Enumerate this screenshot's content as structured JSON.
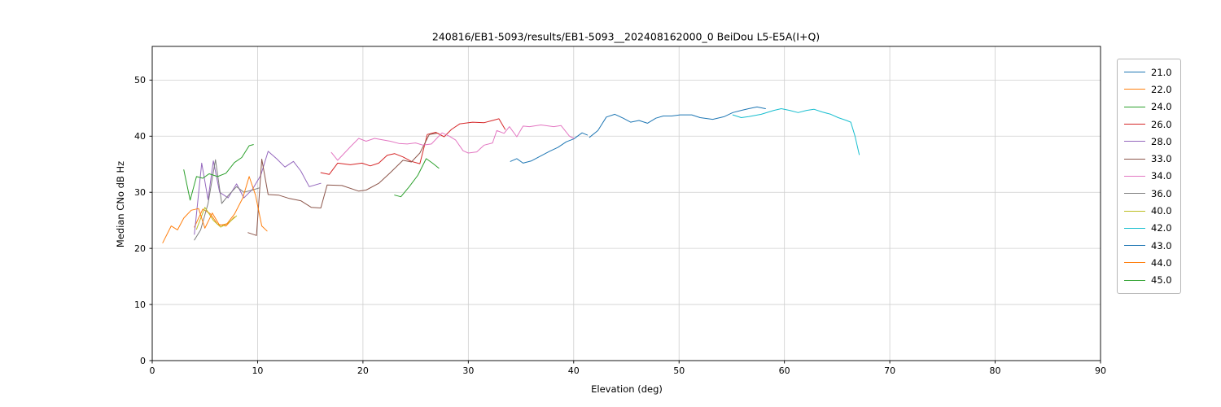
{
  "chart_data": {
    "type": "line",
    "title": "240816/EB1-5093/results/EB1-5093__202408162000_0 BeiDou L5-E5A(I+Q)",
    "xlabel": "Elevation (deg)",
    "ylabel": "Median CNo dB Hz",
    "xlim": [
      0,
      90
    ],
    "ylim": [
      0,
      56
    ],
    "xticks": [
      0,
      10,
      20,
      30,
      40,
      50,
      60,
      70,
      80,
      90
    ],
    "yticks": [
      0,
      10,
      20,
      30,
      40,
      50
    ],
    "grid": true,
    "grid_color": "#cfcfcf",
    "legend_position": "outside-right",
    "series": [
      {
        "name": "21.0",
        "color": "#1f77b4",
        "x": [
          34.0,
          34.6,
          35.2,
          36.0,
          36.9,
          37.7,
          38.5,
          39.3,
          40.0,
          40.8,
          41.3
        ],
        "y": [
          35.5,
          36.0,
          35.2,
          35.6,
          36.5,
          37.3,
          38.0,
          39.0,
          39.5,
          40.6,
          40.2
        ]
      },
      {
        "name": "22.0",
        "color": "#ff7f0e",
        "x": [
          4.0,
          4.8,
          5.5,
          6.2,
          7.0,
          7.8
        ],
        "y": [
          23.8,
          27.0,
          26.2,
          24.3,
          24.0,
          25.6
        ]
      },
      {
        "name": "24.0",
        "color": "#2ca02c",
        "x": [
          23.0,
          23.6,
          24.4,
          25.2,
          26.0,
          26.6,
          27.2
        ],
        "y": [
          29.5,
          29.2,
          31.0,
          33.0,
          36.0,
          35.2,
          34.3
        ]
      },
      {
        "name": "26.0",
        "color": "#d62728",
        "x": [
          16.0,
          16.8,
          17.6,
          18.8,
          19.9,
          20.7,
          21.5,
          22.3,
          23.0,
          23.8,
          24.6,
          25.4,
          26.1,
          26.9,
          27.7,
          28.4,
          29.2,
          30.4,
          31.5,
          32.3,
          32.9,
          33.5
        ],
        "y": [
          33.5,
          33.2,
          35.2,
          34.9,
          35.2,
          34.7,
          35.2,
          36.6,
          36.9,
          36.3,
          35.5,
          35.1,
          40.3,
          40.7,
          39.9,
          41.2,
          42.2,
          42.5,
          42.4,
          42.8,
          43.1,
          41.2
        ]
      },
      {
        "name": "28.0",
        "color": "#9467bd",
        "x": [
          4.0,
          4.7,
          5.3,
          5.8,
          6.4,
          7.2,
          8.0,
          8.7,
          9.5,
          10.3,
          11.0,
          11.8,
          12.6,
          13.4,
          14.1,
          14.9,
          16.0
        ],
        "y": [
          22.5,
          35.2,
          28.7,
          35.6,
          30.0,
          29.0,
          31.5,
          29.0,
          30.5,
          33.0,
          37.3,
          36.0,
          34.5,
          35.5,
          33.8,
          31.0,
          31.6
        ]
      },
      {
        "name": "33.0",
        "color": "#8c564b",
        "x": [
          9.1,
          9.9,
          10.4,
          11.0,
          12.0,
          13.0,
          14.1,
          15.1,
          16.0,
          16.6,
          18.0,
          19.6,
          20.3,
          21.5,
          22.6,
          23.8,
          24.6,
          25.4,
          26.3,
          27.0
        ],
        "y": [
          22.8,
          22.3,
          35.9,
          29.6,
          29.5,
          28.9,
          28.5,
          27.3,
          27.2,
          31.3,
          31.2,
          30.2,
          30.4,
          31.6,
          33.5,
          35.7,
          35.4,
          37.0,
          40.3,
          40.5
        ]
      },
      {
        "name": "34.0",
        "color": "#e377c2",
        "x": [
          17.0,
          17.6,
          18.8,
          19.6,
          20.3,
          21.1,
          22.0,
          22.6,
          23.4,
          24.2,
          25.0,
          25.7,
          26.5,
          27.5,
          28.2,
          28.8,
          29.5,
          30.0,
          30.8,
          31.5,
          32.3,
          32.7,
          33.4,
          33.9,
          34.6,
          35.2,
          35.8,
          36.9,
          38.1,
          38.8,
          39.6,
          40.0
        ],
        "y": [
          37.1,
          35.7,
          38.1,
          39.6,
          39.1,
          39.6,
          39.3,
          39.1,
          38.7,
          38.6,
          38.8,
          38.4,
          38.6,
          40.6,
          40.0,
          39.3,
          37.4,
          37.0,
          37.2,
          38.4,
          38.8,
          41.0,
          40.5,
          41.7,
          39.9,
          41.8,
          41.7,
          42.0,
          41.7,
          41.9,
          40.0,
          39.6
        ]
      },
      {
        "name": "36.0",
        "color": "#7f7f7f",
        "x": [
          4.0,
          4.6,
          5.3,
          6.0,
          6.6,
          7.2,
          8.0,
          8.7,
          9.5,
          10.2
        ],
        "y": [
          21.5,
          23.3,
          28.0,
          35.8,
          28.0,
          29.4,
          31.0,
          30.0,
          30.4,
          30.8
        ]
      },
      {
        "name": "40.0",
        "color": "#bcbd22",
        "x": [
          4.2,
          5.0,
          5.8,
          6.5,
          7.2,
          8.0
        ],
        "y": [
          23.4,
          27.3,
          25.0,
          23.8,
          24.5,
          25.8
        ]
      },
      {
        "name": "42.0",
        "color": "#17becf",
        "x": [
          55.1,
          55.9,
          56.6,
          57.8,
          59.0,
          59.7,
          60.5,
          61.3,
          62.1,
          62.8,
          63.6,
          64.4,
          65.1,
          65.9,
          66.3,
          66.7,
          67.1
        ],
        "y": [
          43.8,
          43.3,
          43.5,
          43.9,
          44.6,
          44.9,
          44.6,
          44.2,
          44.6,
          44.8,
          44.3,
          43.9,
          43.3,
          42.8,
          42.5,
          40.0,
          36.7
        ]
      },
      {
        "name": "43.0",
        "color": "#1f77b4",
        "x": [
          41.5,
          42.3,
          43.1,
          43.9,
          44.7,
          45.4,
          46.2,
          47.0,
          47.8,
          48.5,
          49.3,
          50.1,
          51.2,
          52.0,
          53.2,
          54.3,
          55.1,
          55.9,
          56.6,
          57.4,
          58.2
        ],
        "y": [
          39.8,
          41.0,
          43.4,
          43.9,
          43.2,
          42.5,
          42.8,
          42.3,
          43.2,
          43.6,
          43.6,
          43.8,
          43.8,
          43.3,
          43.0,
          43.5,
          44.2,
          44.6,
          44.9,
          45.2,
          44.9
        ]
      },
      {
        "name": "44.0",
        "color": "#ff7f0e",
        "x": [
          1.0,
          1.8,
          2.4,
          3.0,
          3.7,
          4.4,
          5.0,
          5.7,
          6.4,
          7.1,
          7.8,
          8.6,
          9.2,
          9.8,
          10.4,
          10.9
        ],
        "y": [
          21.0,
          24.0,
          23.3,
          25.4,
          26.8,
          27.1,
          23.6,
          26.3,
          24.1,
          24.4,
          26.1,
          29.0,
          32.8,
          29.5,
          24.0,
          23.1
        ]
      },
      {
        "name": "45.0",
        "color": "#2ca02c",
        "x": [
          3.0,
          3.6,
          4.2,
          4.8,
          5.4,
          6.2,
          7.0,
          7.8,
          8.5,
          9.2,
          9.6
        ],
        "y": [
          34.0,
          28.6,
          32.8,
          32.5,
          33.3,
          32.8,
          33.4,
          35.3,
          36.2,
          38.3,
          38.5
        ]
      }
    ]
  }
}
